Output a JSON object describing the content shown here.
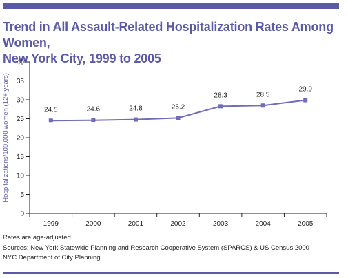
{
  "title": {
    "line1": "Trend in All Assault-Related Hospitalization Rates Among Women,",
    "line2": "New York City, 1999 to 2005"
  },
  "notes": {
    "rates": "Rates are age-adjusted.",
    "sources": "Sources: New York Statewide Planning and Research Cooperative System (SPARCS) & US Census 2000",
    "department": "NYC Department of City Planning"
  },
  "colors": {
    "accent": "#5b5aa8",
    "line": "#6f6cb8",
    "marker": "#6f6cb8",
    "ylabel": "#5b5aa8"
  },
  "chart_data": {
    "type": "line",
    "title": "Trend in All Assault-Related Hospitalization Rates Among Women, New York City, 1999 to 2005",
    "xlabel": "",
    "ylabel": "Hospitalizations/100,000 women (12+ years)",
    "categories": [
      "1999",
      "2000",
      "2001",
      "2002",
      "2003",
      "2004",
      "2005"
    ],
    "series": [
      {
        "values": [
          24.5,
          24.6,
          24.8,
          25.2,
          28.3,
          28.5,
          29.9
        ]
      }
    ],
    "data_labels": [
      "24.5",
      "24.6",
      "24.8",
      "25.2",
      "28.3",
      "28.5",
      "29.9"
    ],
    "yticks": [
      0,
      5,
      10,
      15,
      20,
      25,
      30,
      35,
      40
    ],
    "ylim": [
      0,
      40
    ],
    "grid": false,
    "legend": "none"
  }
}
